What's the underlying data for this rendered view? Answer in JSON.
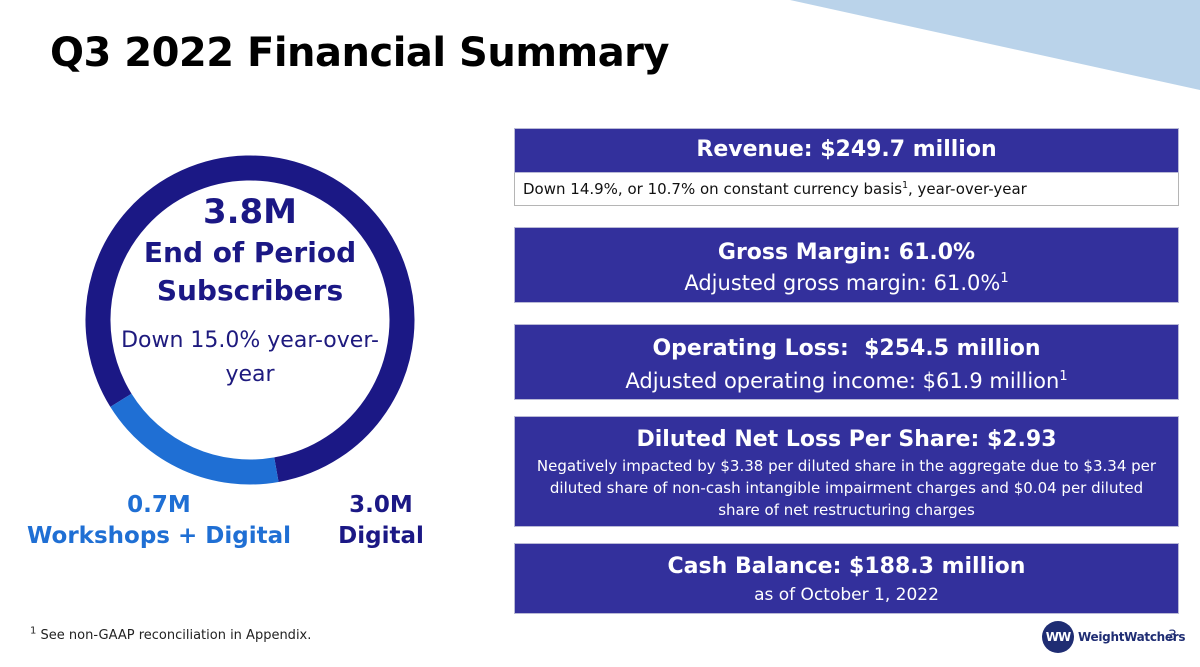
{
  "title": "Q3 2022 Financial Summary",
  "colors": {
    "navy": "#1b1885",
    "blue": "#1f6fd4",
    "card": "#33309c",
    "corner": "#bad3ea"
  },
  "subscribers": {
    "total": "3.8M",
    "label": "End of Period Subscribers",
    "change": "Down 15.0% year-over-year",
    "segments": [
      {
        "value": "0.7M",
        "name": "Workshops + Digital",
        "amount": 0.7
      },
      {
        "value": "3.0M",
        "name": "Digital",
        "amount": 3.0
      }
    ]
  },
  "cards": {
    "revenue": {
      "head": "Revenue: $249.7 million",
      "note_pre": "Down 14.9%, or 10.7% on constant currency basis",
      "note_sup": "1",
      "note_post": ", year-over-year"
    },
    "gross_margin": {
      "head": "Gross Margin: 61.0%",
      "sub": "Adjusted gross margin: 61.0%",
      "sup": "1"
    },
    "operating": {
      "head": "Operating Loss:  $254.5 million",
      "sub": "Adjusted operating income: $61.9 million",
      "sup": "1"
    },
    "net_loss": {
      "head": "Diluted Net Loss Per Share: $2.93",
      "desc": "Negatively impacted by $3.38 per diluted share in the aggregate due to $3.34 per diluted share of non-cash intangible impairment charges and $0.04 per diluted share of net restructuring charges"
    },
    "cash": {
      "head": "Cash Balance: $188.3 million",
      "sub": "as of October 1, 2022"
    }
  },
  "footnote": {
    "sup": "1",
    "text": "See non-GAAP reconciliation in Appendix."
  },
  "brand": {
    "logo_text": "WW",
    "name": "WeightWatchers"
  },
  "page_number": "3"
}
